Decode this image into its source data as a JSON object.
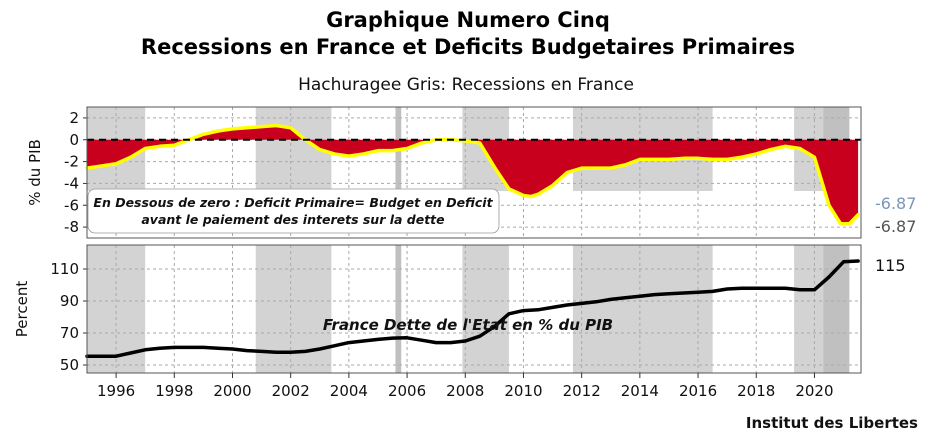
{
  "header": {
    "title_line1": "Graphique Numero Cinq",
    "title_line2": "Recessions en France et Deficits Budgetaires Primaires",
    "subtitle": "Hachuragee Gris: Recessions en France"
  },
  "footer": {
    "credit": "Institut des Libertes"
  },
  "colors": {
    "deficit_fill": "#c8001e",
    "deficit_line": "#ffff00",
    "debt_line": "#000000",
    "recession_shade": "#d3d3d3",
    "recession_overlap": "#c0c0c0",
    "label_blue": "#7a96b8",
    "label_gray": "#555555"
  },
  "chart_data": [
    {
      "type": "area",
      "id": "deficit",
      "ylabel": "% du PIB",
      "xlim": [
        1995.0,
        2021.6
      ],
      "ylim": [
        -9,
        3
      ],
      "yticks": [
        2,
        0,
        -2,
        -4,
        -6,
        -8
      ],
      "grid": true,
      "reference_line": 0,
      "series": [
        {
          "x": [
            1995.0,
            1995.5,
            1996.0,
            1996.5,
            1997.0,
            1997.5,
            1998.0,
            1998.5,
            1999.0,
            1999.5,
            2000.0,
            2000.5,
            2001.0,
            2001.5,
            2002.0,
            2002.5,
            2003.0,
            2003.5,
            2004.0,
            2004.5,
            2005.0,
            2005.5,
            2006.0,
            2006.5,
            2007.0,
            2007.5,
            2008.0,
            2008.5,
            2009.0,
            2009.5,
            2010.0,
            2010.25,
            2010.5,
            2011.0,
            2011.5,
            2012.0,
            2012.5,
            2013.0,
            2013.5,
            2014.0,
            2014.5,
            2015.0,
            2015.5,
            2016.0,
            2016.5,
            2017.0,
            2017.5,
            2018.0,
            2018.5,
            2019.0,
            2019.5,
            2020.0,
            2020.5,
            2020.9,
            2021.2,
            2021.5
          ],
          "values": [
            -2.6,
            -2.4,
            -2.2,
            -1.6,
            -0.8,
            -0.6,
            -0.5,
            0.0,
            0.5,
            0.8,
            1.0,
            1.1,
            1.2,
            1.3,
            1.1,
            0.0,
            -0.9,
            -1.3,
            -1.5,
            -1.3,
            -1.0,
            -1.0,
            -0.8,
            -0.3,
            0.0,
            0.0,
            -0.1,
            -0.3,
            -2.5,
            -4.5,
            -5.1,
            -5.2,
            -5.0,
            -4.2,
            -3.0,
            -2.6,
            -2.6,
            -2.6,
            -2.3,
            -1.8,
            -1.8,
            -1.8,
            -1.7,
            -1.7,
            -1.8,
            -1.8,
            -1.6,
            -1.3,
            -0.9,
            -0.6,
            -0.8,
            -1.6,
            -6.0,
            -7.7,
            -7.7,
            -6.87
          ]
        }
      ],
      "annotation": {
        "line1": "En Dessous de zero : Deficit Primaire= Budget en Deficit",
        "line2": "avant le paiement des interets sur la dette"
      },
      "end_labels": [
        "-6.87",
        "-6.87"
      ]
    },
    {
      "type": "line",
      "id": "debt",
      "ylabel": "Percent",
      "xlim": [
        1995.0,
        2021.6
      ],
      "ylim": [
        45,
        125
      ],
      "yticks": [
        110,
        90,
        70,
        50
      ],
      "grid": true,
      "series": [
        {
          "x": [
            1995.0,
            1995.5,
            1996.0,
            1996.5,
            1997.0,
            1997.5,
            1998.0,
            1998.5,
            1999.0,
            1999.5,
            2000.0,
            2000.5,
            2001.0,
            2001.5,
            2002.0,
            2002.5,
            2003.0,
            2003.5,
            2004.0,
            2004.5,
            2005.0,
            2005.5,
            2006.0,
            2006.5,
            2007.0,
            2007.5,
            2008.0,
            2008.5,
            2009.0,
            2009.5,
            2010.0,
            2010.5,
            2011.0,
            2011.5,
            2012.0,
            2012.5,
            2013.0,
            2013.5,
            2014.0,
            2014.5,
            2015.0,
            2015.5,
            2016.0,
            2016.5,
            2017.0,
            2017.5,
            2018.0,
            2018.5,
            2019.0,
            2019.5,
            2020.0,
            2020.5,
            2021.0,
            2021.5
          ],
          "values": [
            55.5,
            55.5,
            55.5,
            57.5,
            59.5,
            60.5,
            61.0,
            61.0,
            61.0,
            60.5,
            60.0,
            59.0,
            58.5,
            58.0,
            58.0,
            58.5,
            60.0,
            62.0,
            64.0,
            65.0,
            66.0,
            66.8,
            67.0,
            65.5,
            64.0,
            64.0,
            65.0,
            68.0,
            74.0,
            82.0,
            84.0,
            84.5,
            86.0,
            87.5,
            88.5,
            89.5,
            91.0,
            92.0,
            93.0,
            94.0,
            94.5,
            95.0,
            95.5,
            96.0,
            97.5,
            98.0,
            98.0,
            98.0,
            98.0,
            97.0,
            97.0,
            105.0,
            114.5,
            115.0
          ]
        }
      ],
      "annotation": {
        "line1": "France Dette de l'Etat en % du PIB"
      },
      "end_labels": [
        "115"
      ]
    }
  ],
  "x_axis": {
    "tick_values": [
      1996,
      1998,
      2000,
      2002,
      2004,
      2006,
      2008,
      2010,
      2012,
      2014,
      2016,
      2018,
      2020
    ],
    "tick_labels": [
      "1996",
      "1998",
      "2000",
      "2002",
      "2004",
      "2006",
      "2008",
      "2010",
      "2012",
      "2014",
      "2016",
      "2018",
      "2020"
    ]
  },
  "recessions": [
    [
      1995.0,
      1997.0
    ],
    [
      2000.8,
      2003.4
    ],
    [
      2005.6,
      2005.8
    ],
    [
      2007.9,
      2009.5
    ],
    [
      2011.7,
      2016.5
    ],
    [
      2019.3,
      2020.3
    ],
    [
      2020.3,
      2021.2
    ]
  ]
}
